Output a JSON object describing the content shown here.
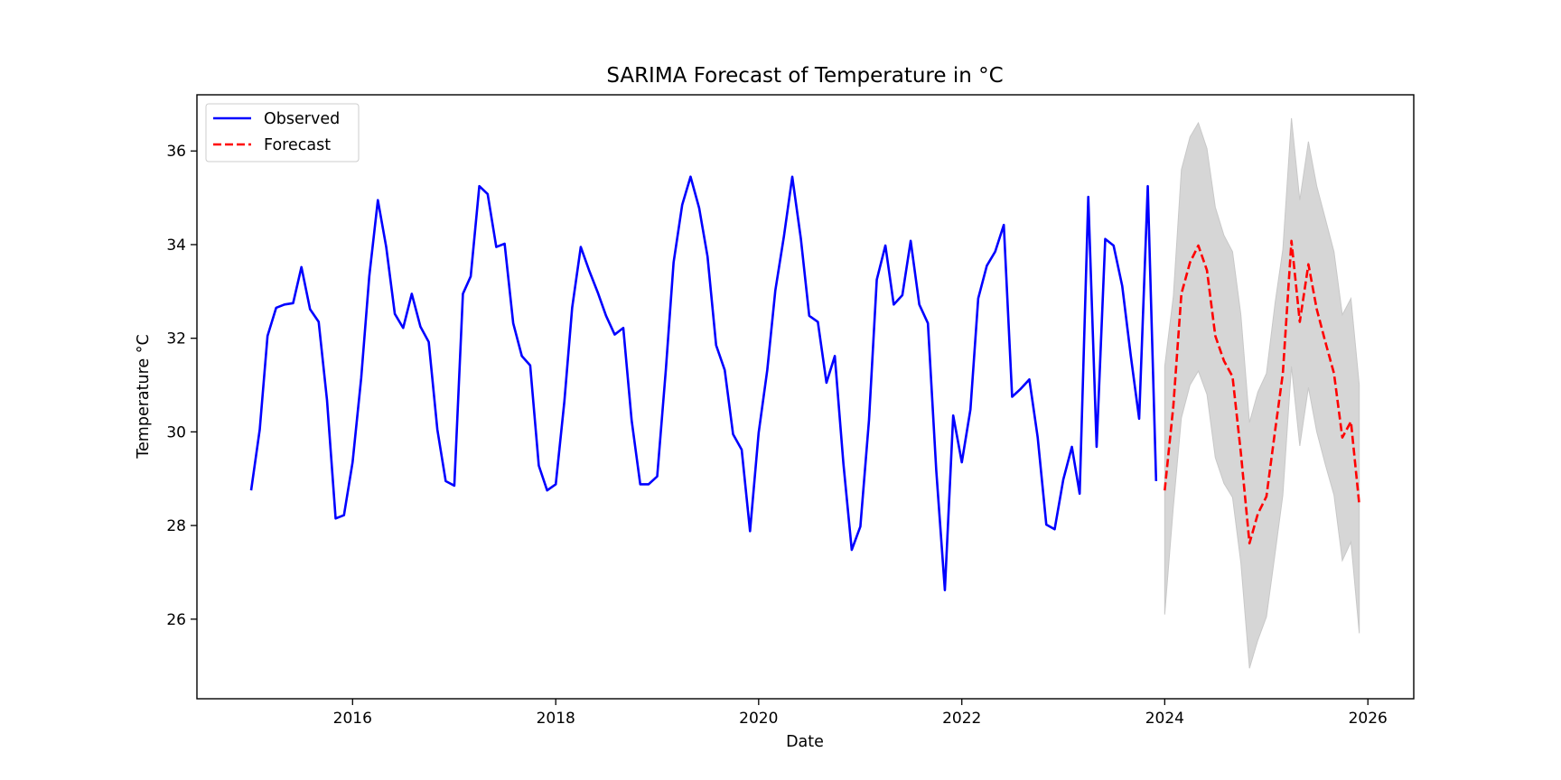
{
  "chart_data": {
    "type": "line",
    "title": "SARIMA Forecast of Temperature in °C",
    "xlabel": "Date",
    "ylabel": "Temperature °C",
    "xlim": [
      "2014-06-20",
      "2026-06-15"
    ],
    "ylim": [
      24.3,
      37.2
    ],
    "x_ticks": [
      "2016-01-01",
      "2018-01-01",
      "2020-01-01",
      "2022-01-01",
      "2024-01-01",
      "2026-01-01"
    ],
    "x_tick_labels": [
      "2016",
      "2018",
      "2020",
      "2022",
      "2024",
      "2026"
    ],
    "y_ticks": [
      26,
      28,
      30,
      32,
      34,
      36
    ],
    "y_tick_labels": [
      "26",
      "28",
      "30",
      "32",
      "34",
      "36"
    ],
    "grid": false,
    "legend_position": "top-left",
    "series": [
      {
        "name": "Observed",
        "color": "#0000ff",
        "style": "solid",
        "x_start": "2015-01",
        "values": [
          28.75,
          30.05,
          32.05,
          32.65,
          32.72,
          32.75,
          33.52,
          32.62,
          32.35,
          30.68,
          28.15,
          28.22,
          29.35,
          31.15,
          33.32,
          34.95,
          33.95,
          32.52,
          32.22,
          32.95,
          32.25,
          31.92,
          30.05,
          28.95,
          28.85,
          32.95,
          33.32,
          35.25,
          35.08,
          33.95,
          34.02,
          32.32,
          31.62,
          31.42,
          29.28,
          28.75,
          28.88,
          30.65,
          32.65,
          33.95,
          33.45,
          32.98,
          32.48,
          32.08,
          32.22,
          30.25,
          28.88,
          28.88,
          29.05,
          31.32,
          33.62,
          34.85,
          35.45,
          34.78,
          33.75,
          31.85,
          31.32,
          29.95,
          29.62,
          27.88,
          29.98,
          31.32,
          33.02,
          34.18,
          35.45,
          34.12,
          32.48,
          32.35,
          31.05,
          31.62,
          29.32,
          27.48,
          27.98,
          30.25,
          33.25,
          33.98,
          32.72,
          32.92,
          34.08,
          32.72,
          32.32,
          29.18,
          26.62,
          30.35,
          29.35,
          30.48,
          32.85,
          33.55,
          33.85,
          34.42,
          30.75,
          30.92,
          31.12,
          29.88,
          28.02,
          27.92,
          28.98,
          29.68,
          28.68,
          35.02,
          29.68,
          34.12,
          33.98,
          33.12,
          31.62,
          30.28,
          35.25,
          28.95
        ]
      },
      {
        "name": "Forecast",
        "color": "#ff0000",
        "style": "dashed",
        "x_start": "2024-01",
        "values": [
          28.75,
          30.55,
          32.95,
          33.62,
          33.98,
          33.45,
          32.05,
          31.52,
          31.18,
          29.55,
          27.62,
          28.25,
          28.62,
          30.02,
          31.25,
          34.08,
          32.35,
          33.58,
          32.62,
          31.92,
          31.25,
          29.88,
          30.22,
          28.45
        ],
        "lower": [
          26.1,
          28.4,
          30.3,
          31.0,
          31.3,
          30.8,
          29.45,
          28.9,
          28.6,
          27.2,
          24.95,
          25.55,
          26.05,
          27.4,
          28.65,
          31.4,
          29.7,
          30.95,
          30.0,
          29.3,
          28.65,
          27.25,
          27.65,
          25.7
        ],
        "upper": [
          31.4,
          32.9,
          35.6,
          36.3,
          36.6,
          36.05,
          34.8,
          34.2,
          33.85,
          32.5,
          30.2,
          30.85,
          31.25,
          32.75,
          33.9,
          36.7,
          34.95,
          36.2,
          35.25,
          34.55,
          33.85,
          32.5,
          32.85,
          31.0
        ],
        "band_color": "#d6d6d6"
      }
    ]
  }
}
